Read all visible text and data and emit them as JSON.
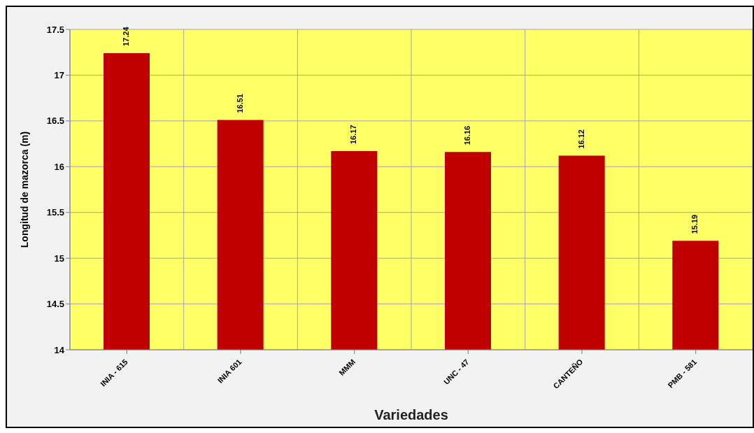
{
  "chart_data": {
    "type": "bar",
    "xlabel": "Variedades",
    "ylabel": "Longitud de mazorca (m)",
    "categories": [
      "INIA - 615",
      "INIA 601",
      "MMM",
      "UNC - 47",
      "CANTEÑO",
      "PMB - 581"
    ],
    "values": [
      17.24,
      16.51,
      16.17,
      16.16,
      16.12,
      15.19
    ],
    "color": "#c00000",
    "ylim": [
      14,
      17.5
    ],
    "yticks": [
      14,
      14.5,
      15,
      15.5,
      16,
      16.5,
      17,
      17.5
    ],
    "grid": true,
    "data_labels": true
  }
}
